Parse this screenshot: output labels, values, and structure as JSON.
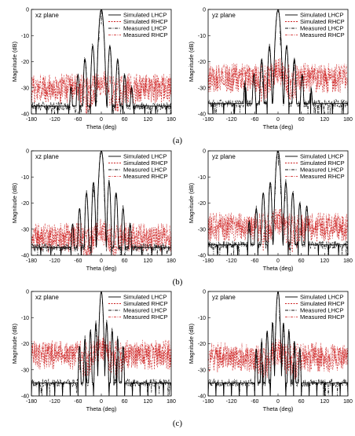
{
  "colors": {
    "sim_lhcp": "#000000",
    "sim_rhcp": "#cc1f1f",
    "meas_lhcp": "#1a1a1a",
    "meas_rhcp": "#d94b4b",
    "axis": "#000000"
  },
  "legend": [
    "Simulated LHCP",
    "Simulated RHCP",
    "Measured LHCP",
    "Measured RHCP"
  ],
  "chart_data": [
    {
      "type": "line",
      "row": 0,
      "col": 0,
      "plane": "xz plane",
      "xlabel": "Theta (deg)",
      "ylabel": "Magnitude (dB)",
      "xlim": [
        -180,
        180
      ],
      "ylim": [
        -40,
        0
      ],
      "xticks": [
        -180,
        -120,
        -60,
        0,
        60,
        120,
        180
      ],
      "yticks": [
        0,
        -10,
        -20,
        -30,
        -40
      ],
      "legend_position": "top-right",
      "main_lobe_width": 14,
      "sidelobes": [
        [
          -22,
          -14
        ],
        [
          -42,
          -19
        ],
        [
          -60,
          -25
        ],
        [
          -78,
          -30
        ],
        [
          22,
          -14
        ],
        [
          42,
          -19
        ],
        [
          60,
          -25
        ],
        [
          78,
          -30
        ]
      ],
      "floor": -37,
      "cross_pol_level": -31
    },
    {
      "type": "line",
      "row": 0,
      "col": 1,
      "plane": "yz plane",
      "xlabel": "Theta (deg)",
      "ylabel": "Magnitude (dB)",
      "xlim": [
        -180,
        180
      ],
      "ylim": [
        -40,
        0
      ],
      "xticks": [
        -180,
        -120,
        -60,
        0,
        60,
        120,
        180
      ],
      "yticks": [
        0,
        -10,
        -20,
        -30,
        -40
      ],
      "legend_position": "top-right",
      "main_lobe_width": 14,
      "sidelobes": [
        [
          -22,
          -14
        ],
        [
          -42,
          -19
        ],
        [
          -62,
          -25
        ],
        [
          -85,
          -28
        ],
        [
          22,
          -14
        ],
        [
          42,
          -19
        ],
        [
          62,
          -25
        ],
        [
          85,
          -30
        ]
      ],
      "floor": -36,
      "cross_pol_level": -27
    },
    {
      "type": "line",
      "row": 1,
      "col": 0,
      "plane": "xz plane",
      "xlabel": "Theta (deg)",
      "ylabel": "Magnitude (dB)",
      "xlim": [
        -180,
        180
      ],
      "ylim": [
        -40,
        0
      ],
      "xticks": [
        -180,
        -120,
        -60,
        0,
        60,
        120,
        180
      ],
      "yticks": [
        0,
        -10,
        -20,
        -30,
        -40
      ],
      "legend_position": "top-right",
      "main_lobe_width": 13,
      "sidelobes": [
        [
          -20,
          -12
        ],
        [
          -38,
          -16
        ],
        [
          -56,
          -22
        ],
        [
          -74,
          -28
        ],
        [
          20,
          -12
        ],
        [
          38,
          -16
        ],
        [
          56,
          -22
        ],
        [
          74,
          -28
        ]
      ],
      "floor": -37,
      "cross_pol_level": -34
    },
    {
      "type": "line",
      "row": 1,
      "col": 1,
      "plane": "yz plane",
      "xlabel": "Theta (deg)",
      "ylabel": "Magnitude (dB)",
      "xlim": [
        -180,
        180
      ],
      "ylim": [
        -40,
        0
      ],
      "xticks": [
        -180,
        -120,
        -60,
        0,
        60,
        120,
        180
      ],
      "yticks": [
        0,
        -10,
        -20,
        -30,
        -40
      ],
      "legend_position": "top-right",
      "main_lobe_width": 13,
      "sidelobes": [
        [
          -20,
          -12
        ],
        [
          -38,
          -16
        ],
        [
          -56,
          -22
        ],
        [
          -74,
          -27
        ],
        [
          20,
          -12
        ],
        [
          38,
          -16
        ],
        [
          56,
          -20
        ],
        [
          74,
          -21
        ]
      ],
      "floor": -36,
      "cross_pol_level": -30
    },
    {
      "type": "line",
      "row": 2,
      "col": 0,
      "plane": "xz plane",
      "xlabel": "Theta (deg)",
      "ylabel": "Magnitude (dB)",
      "xlim": [
        -180,
        180
      ],
      "ylim": [
        -40,
        0
      ],
      "xticks": [
        -180,
        -120,
        -60,
        0,
        60,
        120,
        180
      ],
      "yticks": [
        0,
        -10,
        -20,
        -30,
        -40
      ],
      "legend_position": "top-right",
      "main_lobe_width": 10,
      "sidelobes": [
        [
          -14,
          -12
        ],
        [
          -28,
          -15
        ],
        [
          -42,
          -18
        ],
        [
          -56,
          -21
        ],
        [
          14,
          -12
        ],
        [
          28,
          -15
        ],
        [
          42,
          -18
        ],
        [
          56,
          -21
        ]
      ],
      "floor": -35,
      "cross_pol_level": -25
    },
    {
      "type": "line",
      "row": 2,
      "col": 1,
      "plane": "yz plane",
      "xlabel": "Theta (deg)",
      "ylabel": "Magnitude (dB)",
      "xlim": [
        -180,
        180
      ],
      "ylim": [
        -40,
        0
      ],
      "xticks": [
        -180,
        -120,
        -60,
        0,
        60,
        120,
        180
      ],
      "yticks": [
        0,
        -10,
        -20,
        -30,
        -40
      ],
      "legend_position": "top-right",
      "main_lobe_width": 10,
      "sidelobes": [
        [
          -14,
          -12
        ],
        [
          -28,
          -15
        ],
        [
          -42,
          -19
        ],
        [
          -56,
          -22
        ],
        [
          14,
          -12
        ],
        [
          28,
          -15
        ],
        [
          42,
          -19
        ],
        [
          56,
          -22
        ]
      ],
      "floor": -35,
      "cross_pol_level": -26
    }
  ],
  "captions": [
    "(a)",
    "(b)",
    "(c)"
  ]
}
